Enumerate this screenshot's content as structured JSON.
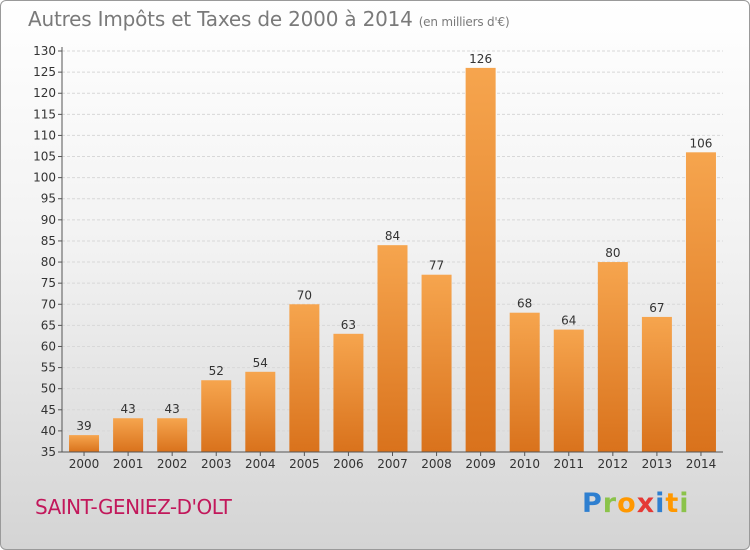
{
  "title": "Autres Impôts et Taxes de 2000 à 2014",
  "subtitle": "(en milliers d'€)",
  "commune": "SAINT-GENIEZ-D'OLT",
  "logo": {
    "letters": [
      "P",
      "r",
      "o",
      "x",
      "i",
      "t",
      "i"
    ],
    "colors": [
      "#2e7fd0",
      "#8bc34a",
      "#ff9800",
      "#e53935",
      "#2e7fd0",
      "#ff9800",
      "#8bc34a"
    ]
  },
  "colors": {
    "bar_light": "#f6a54e",
    "bar_dark": "#d9721c",
    "title": "#7a7a7a",
    "commune": "#c2185b"
  },
  "chart_data": {
    "type": "bar",
    "title": "Autres Impôts et Taxes de 2000 à 2014",
    "subtitle": "(en milliers d'€)",
    "categories": [
      "2000",
      "2001",
      "2002",
      "2003",
      "2004",
      "2005",
      "2006",
      "2007",
      "2008",
      "2009",
      "2010",
      "2011",
      "2012",
      "2013",
      "2014"
    ],
    "values": [
      39,
      43,
      43,
      52,
      54,
      70,
      63,
      84,
      77,
      126,
      68,
      64,
      80,
      67,
      106
    ],
    "ylim": [
      35,
      130
    ],
    "yticks": [
      35,
      40,
      45,
      50,
      55,
      60,
      65,
      70,
      75,
      80,
      85,
      90,
      95,
      100,
      105,
      110,
      115,
      120,
      125,
      130
    ],
    "grid": true,
    "xlabel": "",
    "ylabel": ""
  }
}
